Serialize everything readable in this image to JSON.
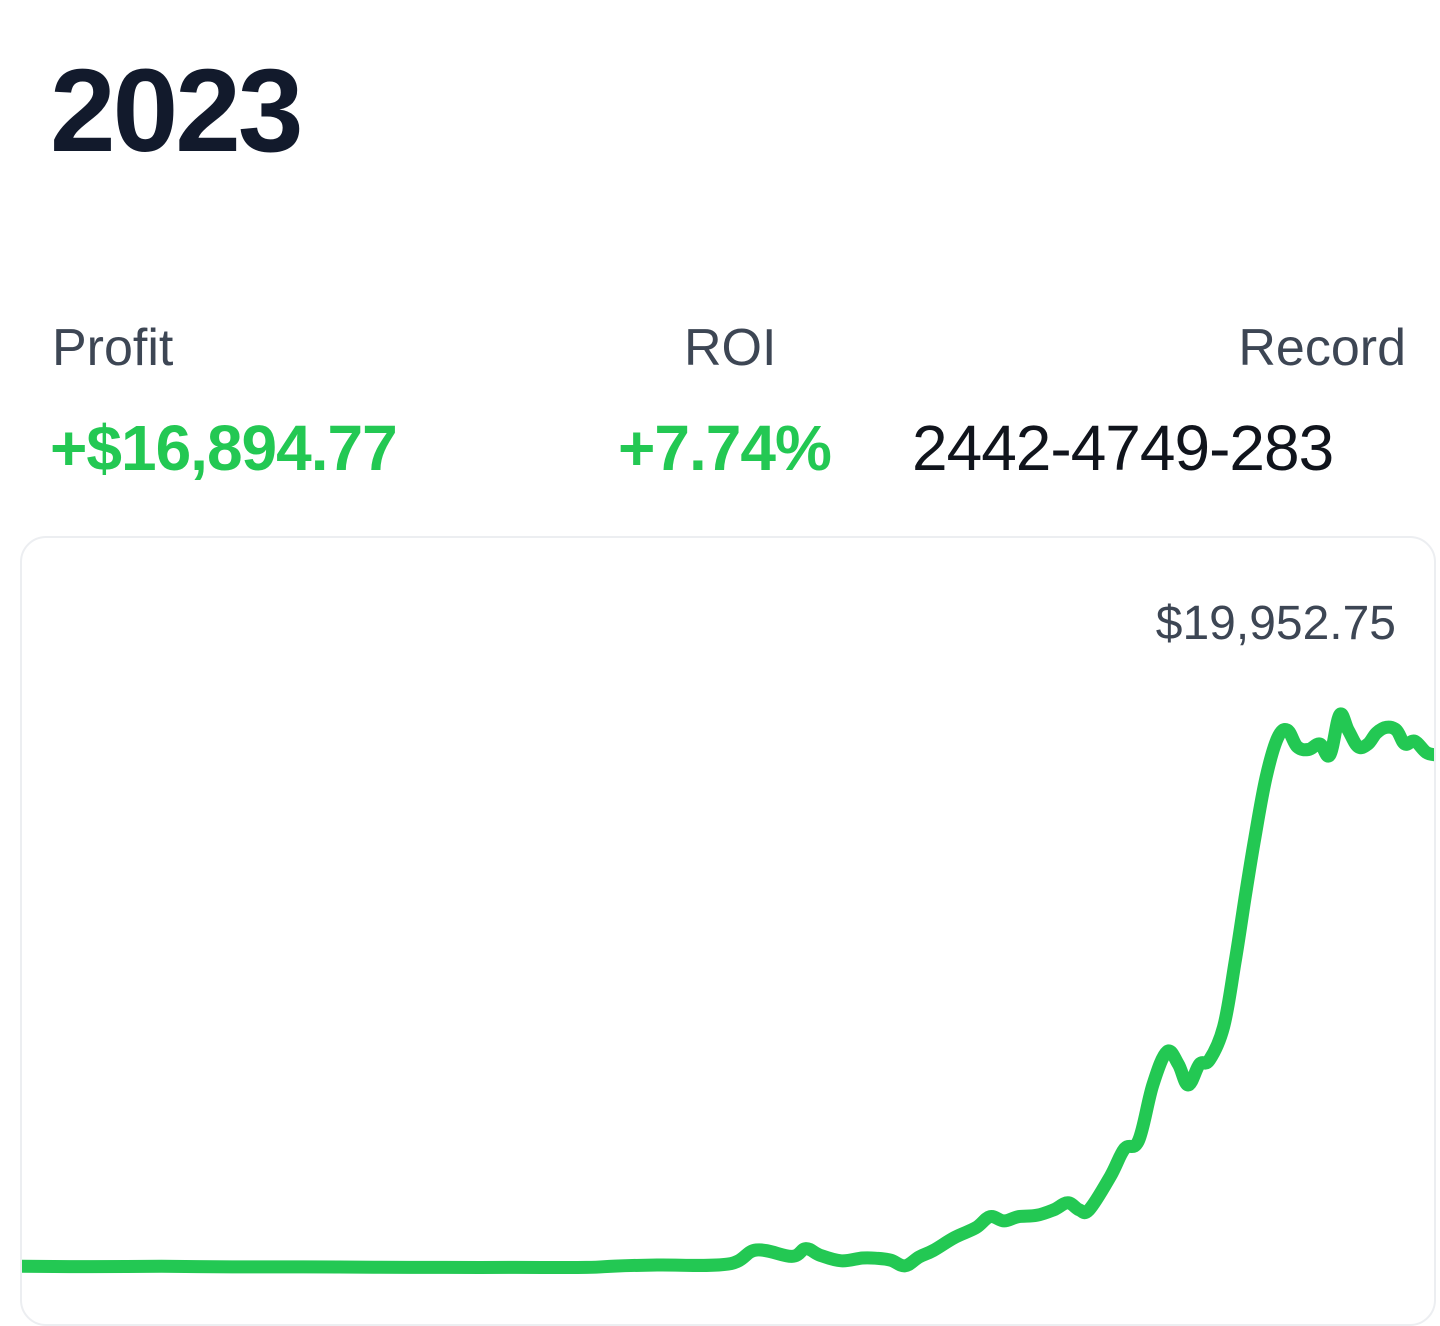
{
  "header": {
    "year": "2023"
  },
  "stats": {
    "profit": {
      "label": "Profit",
      "value": "+$16,894.77"
    },
    "roi": {
      "label": "ROI",
      "value": "+7.74%"
    },
    "record": {
      "label": "Record",
      "value": "2442-4749-283"
    }
  },
  "colors": {
    "accent_green": "#23c853",
    "title_dark": "#121a2c",
    "label_gray": "#3d4654"
  },
  "chart_data": {
    "type": "line",
    "title": "",
    "annotations": [
      "$19,952.75"
    ],
    "grid": false,
    "legend": "none",
    "ylim": [
      0,
      22000
    ],
    "series": [
      {
        "color": "#23c853",
        "x": [
          0,
          0.05,
          0.1,
          0.15,
          0.2,
          0.25,
          0.3,
          0.35,
          0.4,
          0.42,
          0.45,
          0.5,
          0.52,
          0.545,
          0.555,
          0.565,
          0.58,
          0.595,
          0.605,
          0.615,
          0.625,
          0.635,
          0.645,
          0.66,
          0.675,
          0.685,
          0.695,
          0.705,
          0.718,
          0.73,
          0.74,
          0.748,
          0.755,
          0.77,
          0.78,
          0.79,
          0.8,
          0.81,
          0.818,
          0.825,
          0.833,
          0.84,
          0.85,
          0.858,
          0.865,
          0.872,
          0.88,
          0.888,
          0.895,
          0.902,
          0.91,
          0.918,
          0.925,
          0.932,
          0.938,
          0.945,
          0.952,
          0.958,
          0.965,
          0.972,
          0.978,
          0.985,
          0.993,
          1.0
        ],
        "values": [
          60,
          50,
          60,
          40,
          40,
          30,
          20,
          20,
          20,
          70,
          110,
          140,
          650,
          420,
          700,
          460,
          260,
          360,
          350,
          280,
          80,
          400,
          630,
          1100,
          1450,
          1850,
          1700,
          1850,
          1900,
          2100,
          2350,
          2100,
          2100,
          3300,
          4300,
          4600,
          6600,
          7800,
          7350,
          6600,
          7350,
          7500,
          8700,
          11000,
          13300,
          15500,
          17700,
          19100,
          19400,
          18800,
          18700,
          18900,
          18500,
          19950,
          19400,
          18800,
          18900,
          19300,
          19500,
          19400,
          18900,
          19000,
          18600,
          18500
        ]
      }
    ]
  }
}
